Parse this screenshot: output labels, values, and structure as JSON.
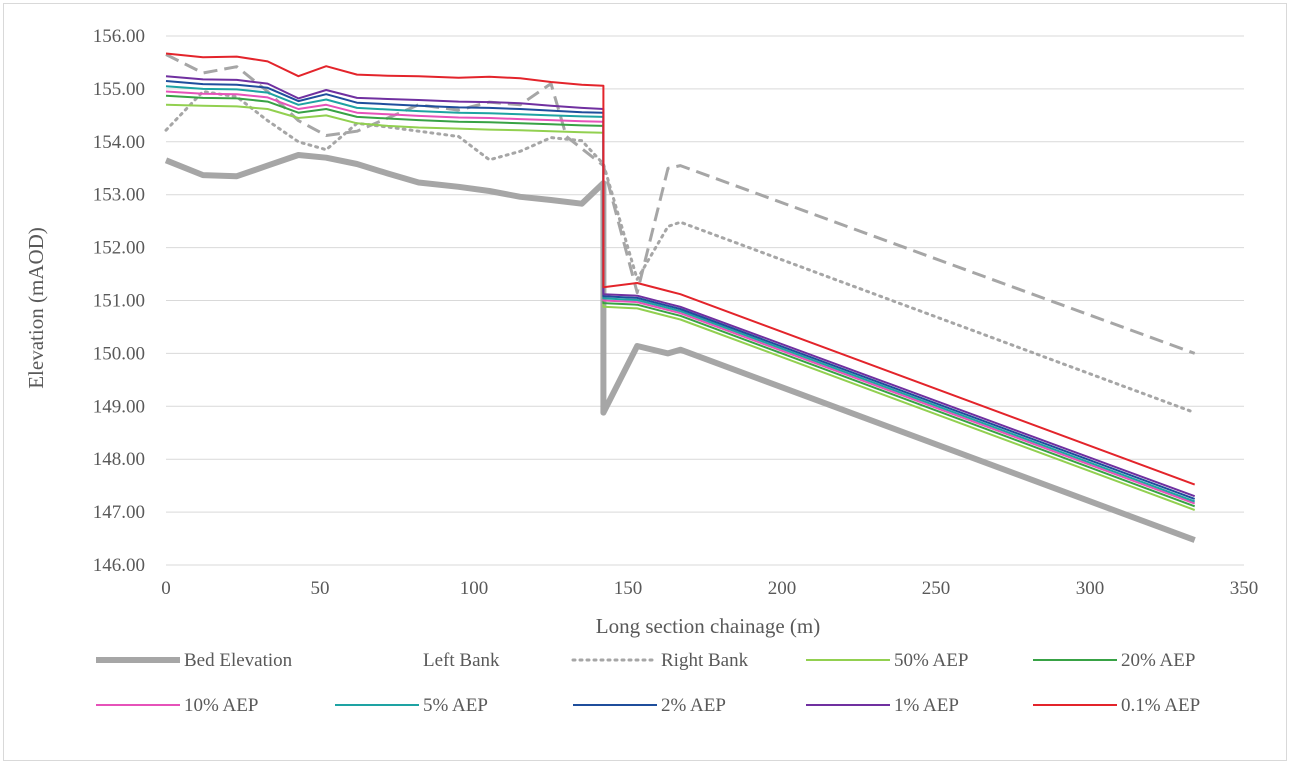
{
  "chart_data": {
    "type": "line",
    "title": "",
    "xlabel": "Long section chainage (m)",
    "ylabel": "Elevation (mAOD)",
    "xlim": [
      0,
      350
    ],
    "ylim": [
      146,
      156
    ],
    "x_ticks": [
      0,
      50,
      100,
      150,
      200,
      250,
      300,
      350
    ],
    "y_ticks": [
      146,
      147,
      148,
      149,
      150,
      151,
      152,
      153,
      154,
      155,
      156
    ],
    "y_tick_labels": [
      "146.00",
      "147.00",
      "148.00",
      "149.00",
      "150.00",
      "151.00",
      "152.00",
      "153.00",
      "154.00",
      "155.00",
      "156.00"
    ],
    "grid": "horizontal",
    "legend_position": "bottom",
    "series": [
      {
        "name": "Bed Elevation",
        "color": "#a6a6a6",
        "style": "solid-thick",
        "points": [
          [
            0,
            153.65
          ],
          [
            12,
            153.37
          ],
          [
            23,
            153.35
          ],
          [
            33,
            153.55
          ],
          [
            43,
            153.75
          ],
          [
            52,
            153.7
          ],
          [
            62,
            153.58
          ],
          [
            72,
            153.4
          ],
          [
            82,
            153.23
          ],
          [
            95,
            153.15
          ],
          [
            105,
            153.07
          ],
          [
            115,
            152.96
          ],
          [
            125,
            152.9
          ],
          [
            135,
            152.83
          ],
          [
            142,
            153.22
          ],
          [
            142,
            148.88
          ],
          [
            153,
            150.14
          ],
          [
            163,
            150.0
          ],
          [
            167,
            150.07
          ],
          [
            334,
            146.47
          ]
        ]
      },
      {
        "name": "Left Bank",
        "color": "#a6a6a6",
        "style": "dash",
        "points": [
          [
            0,
            155.65
          ],
          [
            12,
            155.3
          ],
          [
            23,
            155.42
          ],
          [
            33,
            154.95
          ],
          [
            43,
            154.4
          ],
          [
            52,
            154.12
          ],
          [
            62,
            154.2
          ],
          [
            72,
            154.45
          ],
          [
            82,
            154.7
          ],
          [
            95,
            154.6
          ],
          [
            105,
            154.75
          ],
          [
            115,
            154.7
          ],
          [
            125,
            155.1
          ],
          [
            130,
            154.1
          ],
          [
            142,
            153.55
          ],
          [
            153,
            151.15
          ],
          [
            163,
            153.5
          ],
          [
            167,
            153.55
          ],
          [
            334,
            150.0
          ]
        ]
      },
      {
        "name": "Right Bank",
        "color": "#a6a6a6",
        "style": "dot",
        "points": [
          [
            0,
            154.22
          ],
          [
            12,
            154.95
          ],
          [
            23,
            154.85
          ],
          [
            33,
            154.4
          ],
          [
            43,
            154.0
          ],
          [
            52,
            153.85
          ],
          [
            62,
            154.35
          ],
          [
            72,
            154.28
          ],
          [
            82,
            154.2
          ],
          [
            95,
            154.1
          ],
          [
            105,
            153.66
          ],
          [
            115,
            153.82
          ],
          [
            125,
            154.08
          ],
          [
            135,
            154.02
          ],
          [
            142,
            153.58
          ],
          [
            153,
            151.4
          ],
          [
            163,
            152.4
          ],
          [
            167,
            152.48
          ],
          [
            334,
            148.88
          ]
        ]
      },
      {
        "name": "50% AEP",
        "color": "#92d050",
        "style": "solid",
        "points": [
          [
            0,
            154.7
          ],
          [
            12,
            154.68
          ],
          [
            23,
            154.67
          ],
          [
            33,
            154.62
          ],
          [
            43,
            154.45
          ],
          [
            52,
            154.5
          ],
          [
            62,
            154.35
          ],
          [
            72,
            154.3
          ],
          [
            82,
            154.27
          ],
          [
            95,
            154.25
          ],
          [
            105,
            154.23
          ],
          [
            115,
            154.22
          ],
          [
            125,
            154.2
          ],
          [
            135,
            154.18
          ],
          [
            142,
            154.17
          ],
          [
            142,
            150.88
          ],
          [
            153,
            150.85
          ],
          [
            163,
            150.7
          ],
          [
            167,
            150.64
          ],
          [
            334,
            147.04
          ]
        ]
      },
      {
        "name": "20% AEP",
        "color": "#38a245",
        "style": "solid",
        "points": [
          [
            0,
            154.87
          ],
          [
            12,
            154.83
          ],
          [
            23,
            154.82
          ],
          [
            33,
            154.76
          ],
          [
            43,
            154.55
          ],
          [
            52,
            154.62
          ],
          [
            62,
            154.47
          ],
          [
            72,
            154.44
          ],
          [
            82,
            154.41
          ],
          [
            95,
            154.38
          ],
          [
            105,
            154.37
          ],
          [
            115,
            154.35
          ],
          [
            125,
            154.33
          ],
          [
            135,
            154.31
          ],
          [
            142,
            154.3
          ],
          [
            142,
            150.95
          ],
          [
            153,
            150.92
          ],
          [
            163,
            150.77
          ],
          [
            167,
            150.71
          ],
          [
            334,
            147.11
          ]
        ]
      },
      {
        "name": "10% AEP",
        "color": "#e652b9",
        "style": "solid",
        "points": [
          [
            0,
            154.95
          ],
          [
            12,
            154.91
          ],
          [
            23,
            154.9
          ],
          [
            33,
            154.84
          ],
          [
            43,
            154.62
          ],
          [
            52,
            154.7
          ],
          [
            62,
            154.55
          ],
          [
            72,
            154.52
          ],
          [
            82,
            154.49
          ],
          [
            95,
            154.46
          ],
          [
            105,
            154.45
          ],
          [
            115,
            154.43
          ],
          [
            125,
            154.41
          ],
          [
            135,
            154.39
          ],
          [
            142,
            154.38
          ],
          [
            142,
            151.0
          ],
          [
            153,
            150.97
          ],
          [
            163,
            150.82
          ],
          [
            167,
            150.76
          ],
          [
            334,
            147.16
          ]
        ]
      },
      {
        "name": "5% AEP",
        "color": "#1ea3a3",
        "style": "solid",
        "points": [
          [
            0,
            155.05
          ],
          [
            12,
            155.0
          ],
          [
            23,
            154.99
          ],
          [
            33,
            154.93
          ],
          [
            43,
            154.7
          ],
          [
            52,
            154.8
          ],
          [
            62,
            154.64
          ],
          [
            72,
            154.61
          ],
          [
            82,
            154.58
          ],
          [
            95,
            154.55
          ],
          [
            105,
            154.54
          ],
          [
            115,
            154.52
          ],
          [
            125,
            154.5
          ],
          [
            135,
            154.48
          ],
          [
            142,
            154.47
          ],
          [
            142,
            151.04
          ],
          [
            153,
            151.01
          ],
          [
            163,
            150.86
          ],
          [
            167,
            150.8
          ],
          [
            334,
            147.2
          ]
        ]
      },
      {
        "name": "2% AEP",
        "color": "#1f4e9c",
        "style": "solid",
        "points": [
          [
            0,
            155.15
          ],
          [
            12,
            155.09
          ],
          [
            23,
            155.08
          ],
          [
            33,
            155.02
          ],
          [
            43,
            154.77
          ],
          [
            52,
            154.9
          ],
          [
            62,
            154.74
          ],
          [
            72,
            154.71
          ],
          [
            82,
            154.68
          ],
          [
            95,
            154.65
          ],
          [
            105,
            154.64
          ],
          [
            115,
            154.62
          ],
          [
            125,
            154.59
          ],
          [
            135,
            154.56
          ],
          [
            142,
            154.55
          ],
          [
            142,
            151.08
          ],
          [
            153,
            151.05
          ],
          [
            163,
            150.9
          ],
          [
            167,
            150.84
          ],
          [
            334,
            147.25
          ]
        ]
      },
      {
        "name": "1% AEP",
        "color": "#7030a0",
        "style": "solid",
        "points": [
          [
            0,
            155.24
          ],
          [
            12,
            155.18
          ],
          [
            23,
            155.17
          ],
          [
            33,
            155.1
          ],
          [
            43,
            154.82
          ],
          [
            52,
            154.98
          ],
          [
            62,
            154.83
          ],
          [
            72,
            154.81
          ],
          [
            82,
            154.79
          ],
          [
            95,
            154.76
          ],
          [
            105,
            154.75
          ],
          [
            115,
            154.73
          ],
          [
            125,
            154.68
          ],
          [
            135,
            154.64
          ],
          [
            142,
            154.62
          ],
          [
            142,
            151.12
          ],
          [
            153,
            151.09
          ],
          [
            163,
            150.94
          ],
          [
            167,
            150.88
          ],
          [
            334,
            147.3
          ]
        ]
      },
      {
        "name": "0.1% AEP",
        "color": "#e3242b",
        "style": "solid",
        "points": [
          [
            0,
            155.67
          ],
          [
            12,
            155.6
          ],
          [
            23,
            155.61
          ],
          [
            33,
            155.52
          ],
          [
            43,
            155.24
          ],
          [
            52,
            155.43
          ],
          [
            62,
            155.27
          ],
          [
            72,
            155.25
          ],
          [
            82,
            155.24
          ],
          [
            95,
            155.21
          ],
          [
            105,
            155.23
          ],
          [
            115,
            155.2
          ],
          [
            125,
            155.13
          ],
          [
            135,
            155.08
          ],
          [
            142,
            155.06
          ],
          [
            142,
            151.25
          ],
          [
            153,
            151.33
          ],
          [
            163,
            151.18
          ],
          [
            167,
            151.12
          ],
          [
            334,
            147.52
          ]
        ]
      }
    ]
  }
}
